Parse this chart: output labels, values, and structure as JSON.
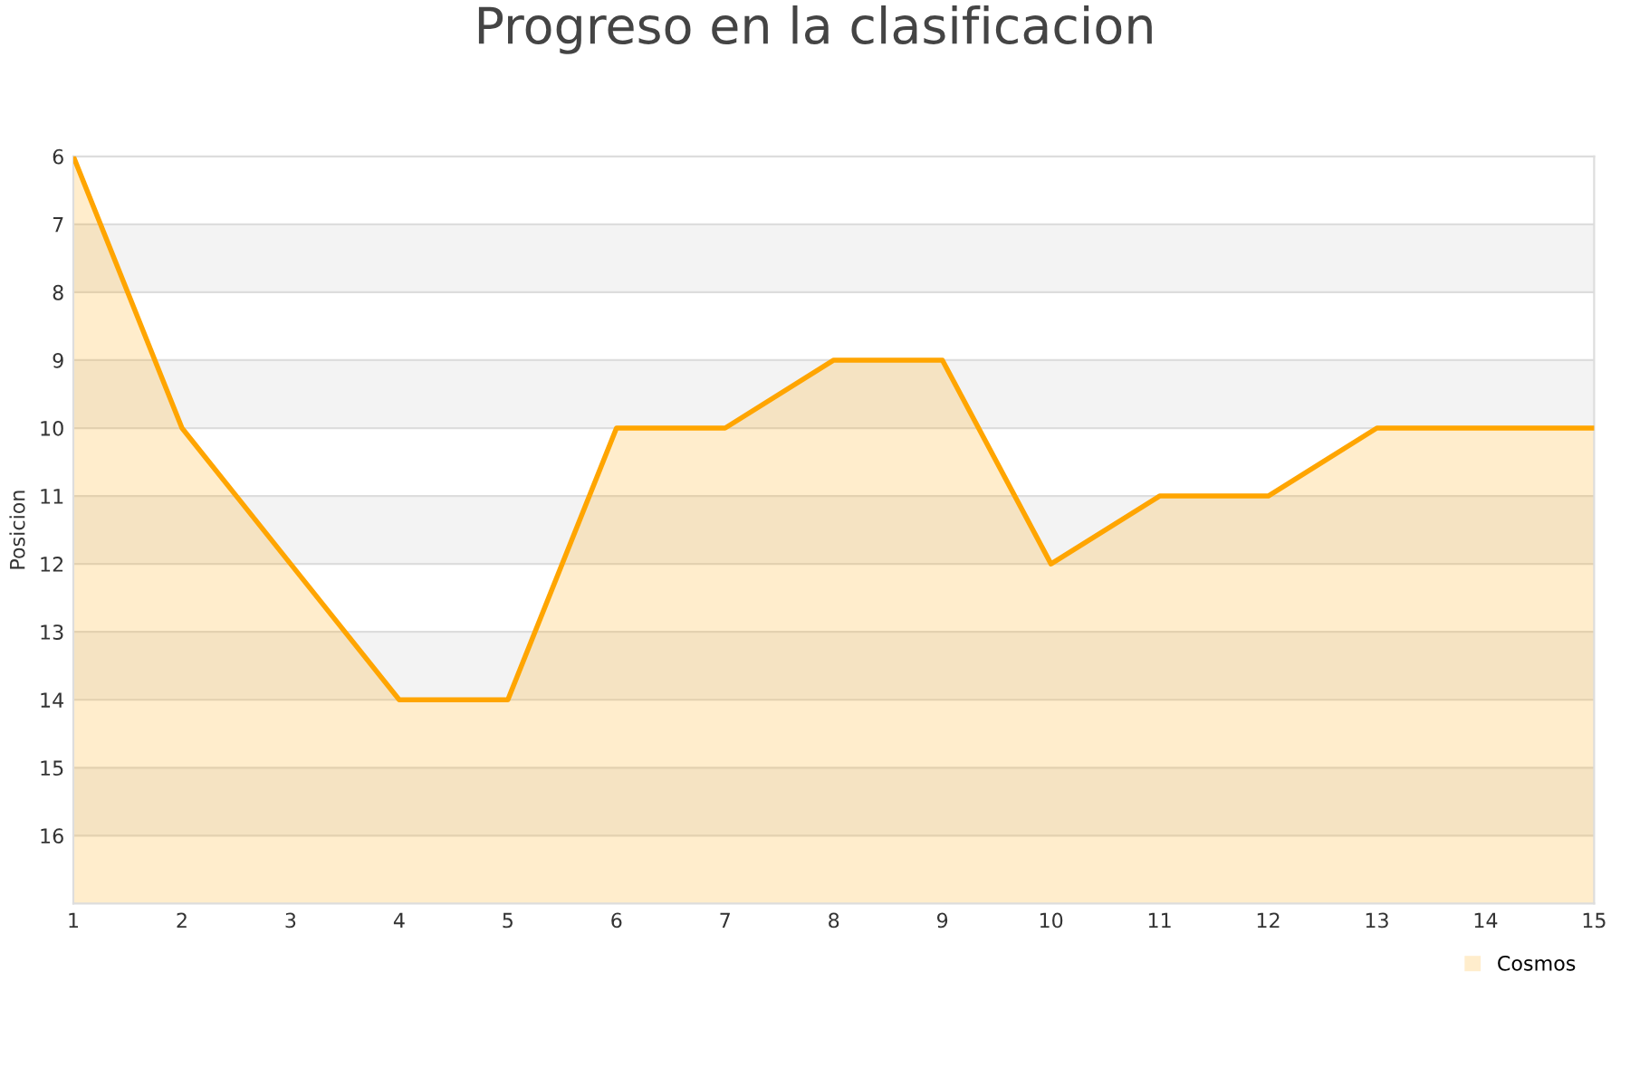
{
  "chart_data": {
    "type": "area",
    "title": "Progreso en la clasificacion",
    "ylabel": "Posicion",
    "x": [
      1,
      2,
      3,
      4,
      5,
      6,
      7,
      8,
      9,
      10,
      11,
      12,
      13,
      14,
      15
    ],
    "series": [
      {
        "name": "Cosmos",
        "color": "#ffa500",
        "values": [
          6,
          10,
          12,
          14,
          14,
          10,
          10,
          9,
          9,
          12,
          11,
          11,
          10,
          10,
          10
        ]
      }
    ],
    "xlim": [
      1,
      15
    ],
    "xticks": [
      1,
      2,
      3,
      4,
      5,
      6,
      7,
      8,
      9,
      10,
      11,
      12,
      13,
      14,
      15
    ],
    "ylim": [
      17,
      6
    ],
    "yticks": [
      6,
      7,
      8,
      9,
      10,
      11,
      12,
      13,
      14,
      15,
      16
    ],
    "grid": "y",
    "legend": "bottom right"
  }
}
